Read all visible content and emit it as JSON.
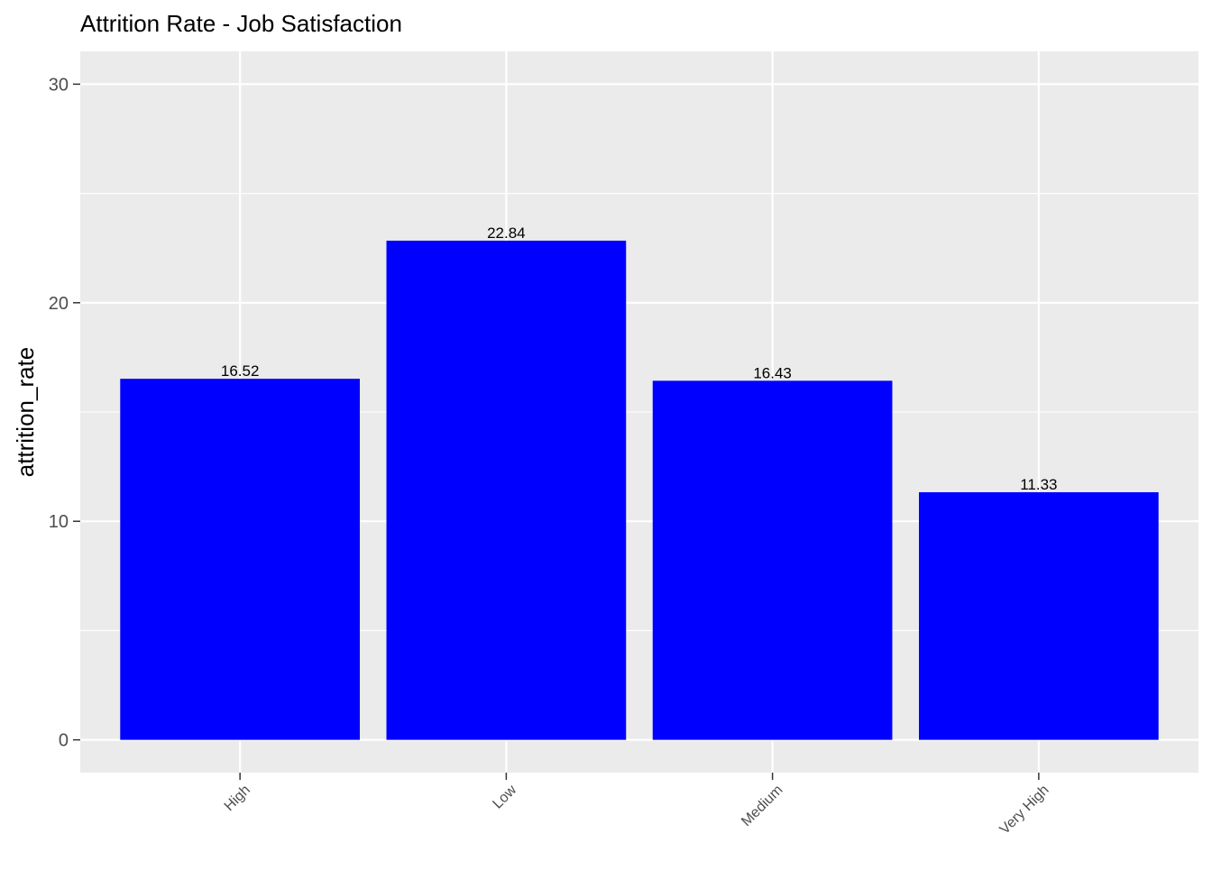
{
  "chart_data": {
    "type": "bar",
    "title": "Attrition Rate - Job Satisfaction",
    "xlabel": "",
    "ylabel": "attrition_rate",
    "categories": [
      "High",
      "Low",
      "Medium",
      "Very High"
    ],
    "values": [
      16.52,
      22.84,
      16.43,
      11.33
    ],
    "data_labels": [
      "16.52",
      "22.84",
      "16.43",
      "11.33"
    ],
    "y_ticks": [
      0,
      10,
      20,
      30
    ],
    "y_tick_labels": [
      "0",
      "10",
      "20",
      "30"
    ],
    "ylim": [
      -1.5,
      31.5
    ],
    "grid": true,
    "legend": "none",
    "colors": {
      "bar": "#0000ff",
      "panel": "#ebebeb",
      "grid": "#ffffff",
      "tick": "#333333"
    }
  }
}
